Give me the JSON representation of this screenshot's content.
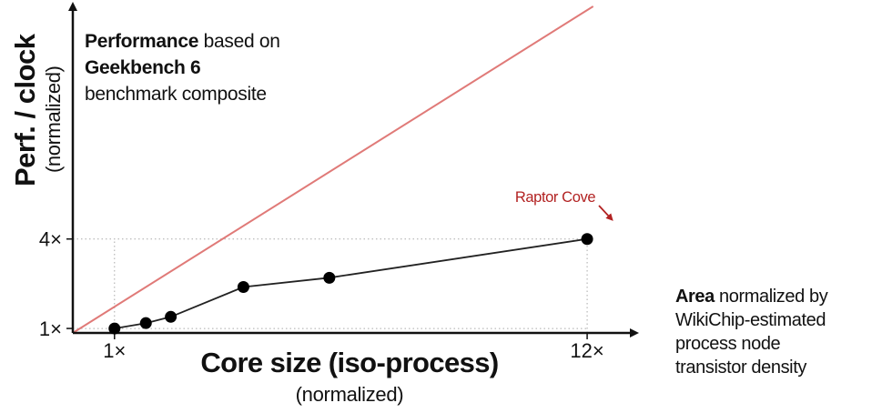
{
  "chart_data": {
    "type": "line",
    "ylabel": "Perf. / clock",
    "ylabel_sub": "(normalized)",
    "xlabel": "Core size (iso-process)",
    "xlabel_sub": "(normalized)",
    "x_ticks": [
      {
        "value": 1,
        "label": "1×"
      },
      {
        "value": 12,
        "label": "12×"
      }
    ],
    "y_ticks": [
      {
        "value": 1,
        "label": "1×"
      },
      {
        "value": 4,
        "label": "4×"
      }
    ],
    "xlim": [
      0.03,
      13.1
    ],
    "ylim": [
      0.85,
      11.8
    ],
    "series": [
      {
        "color": "#222222",
        "points": [
          {
            "x": 1.0,
            "y": 1.0
          },
          {
            "x": 1.73,
            "y": 1.18
          },
          {
            "x": 2.31,
            "y": 1.39
          },
          {
            "x": 4.0,
            "y": 2.39
          },
          {
            "x": 6.0,
            "y": 2.7
          },
          {
            "x": 12.0,
            "y": 4.0
          }
        ]
      }
    ],
    "reference_line": {
      "color": "#e07a78",
      "points": [
        {
          "x": 0.03,
          "y": 0.85
        },
        {
          "x": 12.14,
          "y": 11.8
        }
      ]
    },
    "annotation": {
      "text": "Raptor Cove",
      "color": "#b22222",
      "x": 12.0,
      "y": 4.0
    },
    "notes": {
      "top": [
        [
          {
            "text": "Performance",
            "bold": true
          },
          {
            "text": " based on",
            "bold": false
          }
        ],
        [
          {
            "text": "Geekbench 6",
            "bold": true
          }
        ],
        [
          {
            "text": "benchmark composite",
            "bold": false
          }
        ]
      ],
      "side": [
        [
          {
            "text": "Area",
            "bold": true
          },
          {
            "text": " normalized by",
            "bold": false
          }
        ],
        [
          {
            "text": "WikiChip-estimated",
            "bold": false
          }
        ],
        [
          {
            "text": "process node",
            "bold": false
          }
        ],
        [
          {
            "text": "transistor density",
            "bold": false
          }
        ]
      ]
    }
  }
}
